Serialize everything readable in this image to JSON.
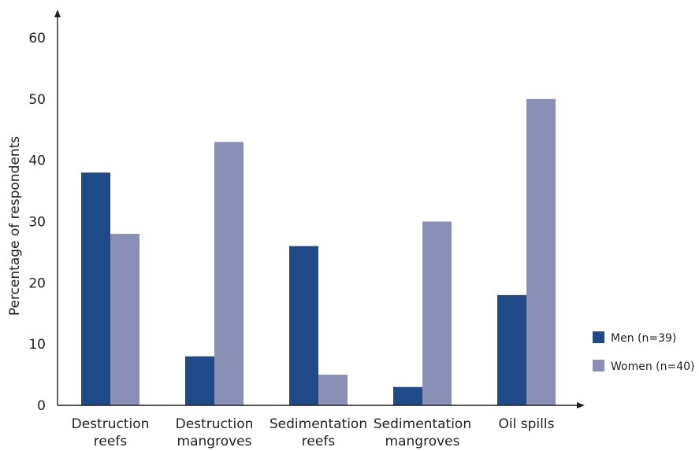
{
  "chart_data": {
    "type": "bar",
    "title": "",
    "xlabel": "",
    "ylabel": "Percentage of respondents",
    "ylim": [
      0,
      60
    ],
    "yticks": [
      0,
      10,
      20,
      30,
      40,
      50,
      60
    ],
    "grid": false,
    "legend": "right",
    "categories": [
      [
        "Destruction",
        "reefs"
      ],
      [
        "Destruction",
        "mangroves"
      ],
      [
        "Sedimentation",
        "reefs"
      ],
      [
        "Sedimentation",
        "mangroves"
      ],
      [
        "Oil spills"
      ]
    ],
    "series": [
      {
        "name": "Men (n=39)",
        "color": "#1e4a87",
        "values": [
          38,
          8,
          26,
          3,
          18
        ]
      },
      {
        "name": "Women (n=40)",
        "color": "#8a8fb6",
        "values": [
          28,
          43,
          5,
          30,
          50
        ]
      }
    ]
  }
}
